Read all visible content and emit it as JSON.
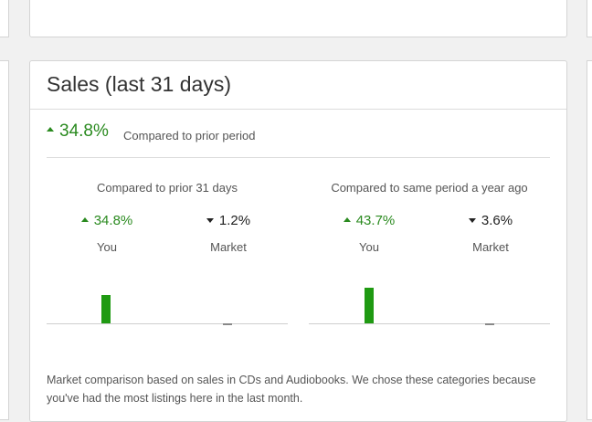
{
  "card": {
    "title": "Sales (last 31 days)",
    "summary": {
      "value": "34.8%",
      "direction": "up",
      "note": "Compared to prior period"
    },
    "columns": [
      {
        "heading": "Compared to prior 31 days",
        "you": {
          "value": "34.8%",
          "direction": "up",
          "label": "You"
        },
        "market": {
          "value": "1.2%",
          "direction": "down",
          "label": "Market"
        }
      },
      {
        "heading": "Compared to same period a year ago",
        "you": {
          "value": "43.7%",
          "direction": "up",
          "label": "You"
        },
        "market": {
          "value": "3.6%",
          "direction": "down",
          "label": "Market"
        }
      }
    ],
    "footnote": "Market comparison based on sales in CDs and Audiobooks. We chose these categories because you've had the most listings here in the last month."
  },
  "colors": {
    "up": "#2a8a1f",
    "bar_up": "#1f9a12",
    "bar_down": "#888888"
  },
  "chart_data": [
    {
      "type": "bar",
      "categories": [
        "You",
        "Market"
      ],
      "values": [
        34.8,
        -1.2
      ],
      "ylabel": ""
    },
    {
      "type": "bar",
      "categories": [
        "You",
        "Market"
      ],
      "values": [
        43.7,
        -3.6
      ],
      "ylabel": ""
    }
  ]
}
